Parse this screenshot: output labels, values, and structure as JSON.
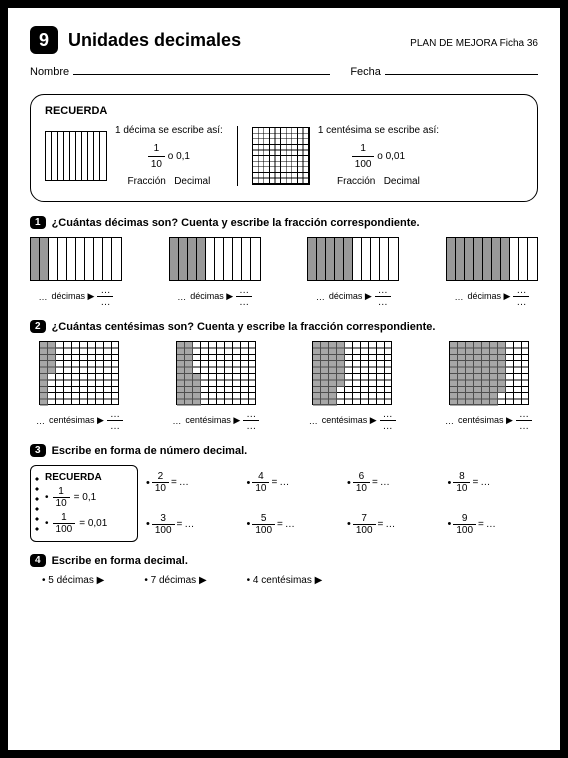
{
  "header": {
    "number": "9",
    "title": "Unidades decimales",
    "plan": "PLAN DE MEJORA  Ficha 36"
  },
  "nameRow": {
    "nombre": "Nombre",
    "fecha": "Fecha"
  },
  "recuerda": {
    "title": "RECUERDA",
    "decima_text": "1 décima se escribe así:",
    "centesima_text": "1 centésima se escribe así:",
    "frac1n": "1",
    "frac1d": "10",
    "dec1": "o 0,1",
    "frac2n": "1",
    "frac2d": "100",
    "dec2": "o 0,01",
    "lbl_frac": "Fracción",
    "lbl_dec": "Decimal"
  },
  "ex1": {
    "q": "¿Cuántas décimas son? Cuenta y escribe la fracción correspondiente.",
    "fills": [
      2,
      4,
      5,
      7
    ],
    "label": "décimas"
  },
  "ex2": {
    "q": "¿Cuántas centésimas son? Cuenta y escribe la fracción correspondiente.",
    "label": "centésimas"
  },
  "ex3": {
    "q": "Escribe en forma de número decimal.",
    "recuerda": "RECUERDA",
    "r1n": "1",
    "r1d": "10",
    "r1v": "= 0,1",
    "r2n": "1",
    "r2d": "100",
    "r2v": "= 0,01",
    "fracs": [
      {
        "n": "2",
        "d": "10"
      },
      {
        "n": "4",
        "d": "10"
      },
      {
        "n": "6",
        "d": "10"
      },
      {
        "n": "8",
        "d": "10"
      },
      {
        "n": "3",
        "d": "100"
      },
      {
        "n": "5",
        "d": "100"
      },
      {
        "n": "7",
        "d": "100"
      },
      {
        "n": "9",
        "d": "100"
      }
    ]
  },
  "ex4": {
    "q": "Escribe en forma decimal.",
    "items": [
      "5 décimas",
      "7 décimas",
      "4 centésimas"
    ]
  }
}
